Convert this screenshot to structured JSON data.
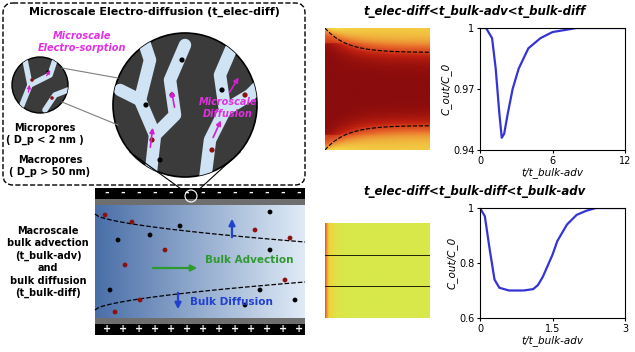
{
  "diagram": {
    "micro_panel": {
      "title": "Microscale Electro-diffusion (t_elec-diff)",
      "electro_sorption": "Microscale\nElectro-sorption",
      "micropores": "Micropores\n( D_p < 2 nm )",
      "macropores": "Macropores\n( D_p > 50 nm)",
      "micro_diffusion": "Microscale\nDiffusion"
    },
    "macro_panel": {
      "label": "Macroscale\nbulk advection\n(t_bulk-adv)\nand\nbulk diffusion\n(t_bulk-diff)",
      "advection": "Bulk Advection",
      "diffusion": "Bulk Diffusion",
      "top_sign": "-",
      "bottom_sign": "+"
    }
  },
  "chart_data": [
    {
      "type": "line",
      "title": "t_elec-diff<t_bulk-adv<t_bulk-diff",
      "x_label": "t/t_bulk-adv",
      "y_label": "C_out/C_0",
      "x": [
        0,
        0.5,
        1,
        1.3,
        1.6,
        1.8,
        2.0,
        2.3,
        2.7,
        3.2,
        4,
        5,
        6,
        8,
        10,
        12
      ],
      "series": [
        {
          "color": "#3434d6",
          "values": [
            1,
            1,
            0.995,
            0.98,
            0.958,
            0.946,
            0.948,
            0.958,
            0.97,
            0.98,
            0.99,
            0.995,
            0.998,
            1,
            1,
            1
          ]
        }
      ],
      "xlim": [
        0,
        12
      ],
      "xticks": [
        0,
        6,
        12
      ],
      "ylim": [
        0.94,
        1
      ],
      "yticks": [
        0.94,
        0.97,
        1
      ],
      "grid": false
    },
    {
      "type": "line",
      "title": "t_elec-diff<t_bulk-diff<t_bulk-adv",
      "x_label": "t/t_bulk-adv",
      "y_label": "C_out/C_0",
      "x": [
        0,
        0.1,
        0.2,
        0.3,
        0.4,
        0.6,
        0.9,
        1.1,
        1.2,
        1.3,
        1.4,
        1.5,
        1.6,
        1.8,
        2.0,
        2.2,
        2.4,
        2.7,
        3
      ],
      "series": [
        {
          "color": "#3434d6",
          "values": [
            1,
            0.97,
            0.85,
            0.74,
            0.71,
            0.7,
            0.7,
            0.705,
            0.72,
            0.75,
            0.79,
            0.83,
            0.88,
            0.94,
            0.975,
            0.99,
            1,
            1,
            1
          ]
        }
      ],
      "xlim": [
        0,
        3
      ],
      "xticks": [
        0,
        1.5,
        3
      ],
      "ylim": [
        0.6,
        1
      ],
      "yticks": [
        0.6,
        0.8,
        1
      ],
      "grid": false
    }
  ]
}
